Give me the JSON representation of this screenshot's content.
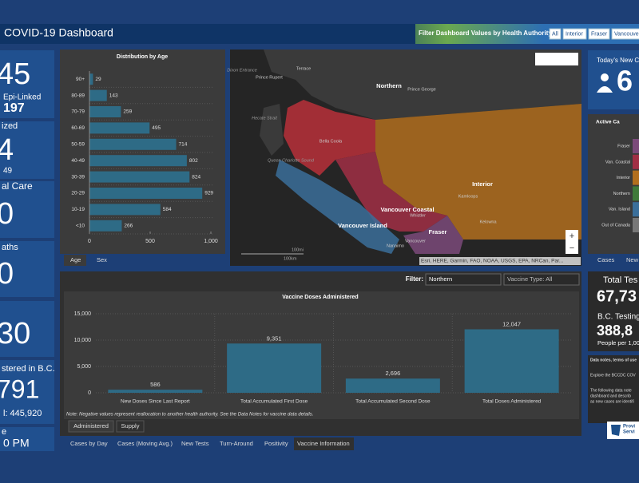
{
  "header": {
    "title": "COVID-19 Dashboard",
    "filter_label": "Filter Dashboard Values by Health Authority:",
    "filter_buttons": [
      "All",
      "Interior",
      "Fraser",
      "Vancouve"
    ]
  },
  "left_panels": [
    {
      "lines": [
        "45",
        "Epi-Linked",
        "197"
      ]
    },
    {
      "lines": [
        "ized",
        "4",
        "49"
      ]
    },
    {
      "lines": [
        "al Care",
        "0"
      ]
    },
    {
      "lines": [
        "aths",
        "0"
      ]
    },
    {
      "lines": [
        "30"
      ]
    },
    {
      "lines": [
        "stered in B.C.",
        "791",
        "l: 445,920"
      ]
    },
    {
      "lines": [
        "e",
        "0 PM"
      ]
    }
  ],
  "chart_data": [
    {
      "type": "hbar",
      "title": "Distribution by Age",
      "categories": [
        "90+",
        "80-89",
        "70-79",
        "60-69",
        "50-59",
        "40-49",
        "30-39",
        "20-29",
        "10-19",
        "<10"
      ],
      "values": [
        29,
        143,
        259,
        495,
        714,
        802,
        824,
        929,
        584,
        266
      ],
      "color": "#2e6b86",
      "xlim": [
        0,
        1000
      ],
      "xticks": [
        0,
        500,
        {
          "value": 1000,
          "label": "1,000"
        }
      ],
      "tabs": [
        "Age",
        "Sex"
      ]
    },
    {
      "type": "bar",
      "title": "Vaccine Doses Administered",
      "categories": [
        "New Doses Since Last Report",
        "Total Accumulated First Dose",
        "Total Accumulated Second Dose",
        "Total Doses Administered"
      ],
      "values": [
        586,
        9351,
        2696,
        12047
      ],
      "value_labels": [
        "586",
        "9,351",
        "2,696",
        "12,047"
      ],
      "color": "#2e6b86",
      "ylim": [
        0,
        15000
      ],
      "yticks": [
        0,
        {
          "value": 5000,
          "label": "5,000"
        },
        {
          "value": 10000,
          "label": "10,000"
        },
        {
          "value": 15000,
          "label": "15,000"
        }
      ],
      "grid": true,
      "filter_label": "Filter:",
      "filter_region": "Northern",
      "filter_type": "Vaccine Type: All",
      "note": "Note: Negative values represent reallocation to another health authority. See the Data Notes for vaccine data details.",
      "tabs": [
        "Administered",
        "Supply"
      ]
    }
  ],
  "map": {
    "regions": [
      "Northern",
      "Interior",
      "Vancouver Coastal",
      "Vancouver Island",
      "Fraser"
    ],
    "places": [
      "Prince Rupert",
      "Terrace",
      "Prince George",
      "Bella Coola",
      "Kamloops",
      "Whistler",
      "Kelowna",
      "Vancouver",
      "Nanaimo"
    ],
    "water": [
      "Dixon Entrance",
      "Hecate Strait",
      "Queen Charlotte Sound"
    ],
    "scale": [
      "100mi",
      "100km"
    ],
    "attribution": "Esri, HERE, Garmin, FAO, NOAA, USGS, EPA, NRCan, Par..."
  },
  "right_panels": {
    "new_cases_title": "Today's New C",
    "new_cases_value": "6",
    "active_title": "Active Ca",
    "active_categories": [
      "Fraser",
      "Van. Coastal",
      "Interior",
      "Northern",
      "Van. Island",
      "Out of Canada"
    ],
    "active_tabs": [
      "Cases",
      "New"
    ],
    "tests_title": "Total Tes",
    "tests_value": "67,73",
    "testing_title": "B.C. Testing",
    "testing_value": "388,8",
    "testing_sub": "People per 1,00",
    "notes": [
      "Data notes, terms of use",
      "Explore the BCCDC COV",
      "The following data note",
      "dashboard and describ",
      "as new cases are identifi"
    ],
    "logo": [
      "Provi",
      "Servi"
    ]
  },
  "bottom_tabs": [
    "Cases by Day",
    "Cases (Moving Avg.)",
    "New Tests",
    "Turn-Around",
    "Positivity",
    "Vaccine Information"
  ]
}
